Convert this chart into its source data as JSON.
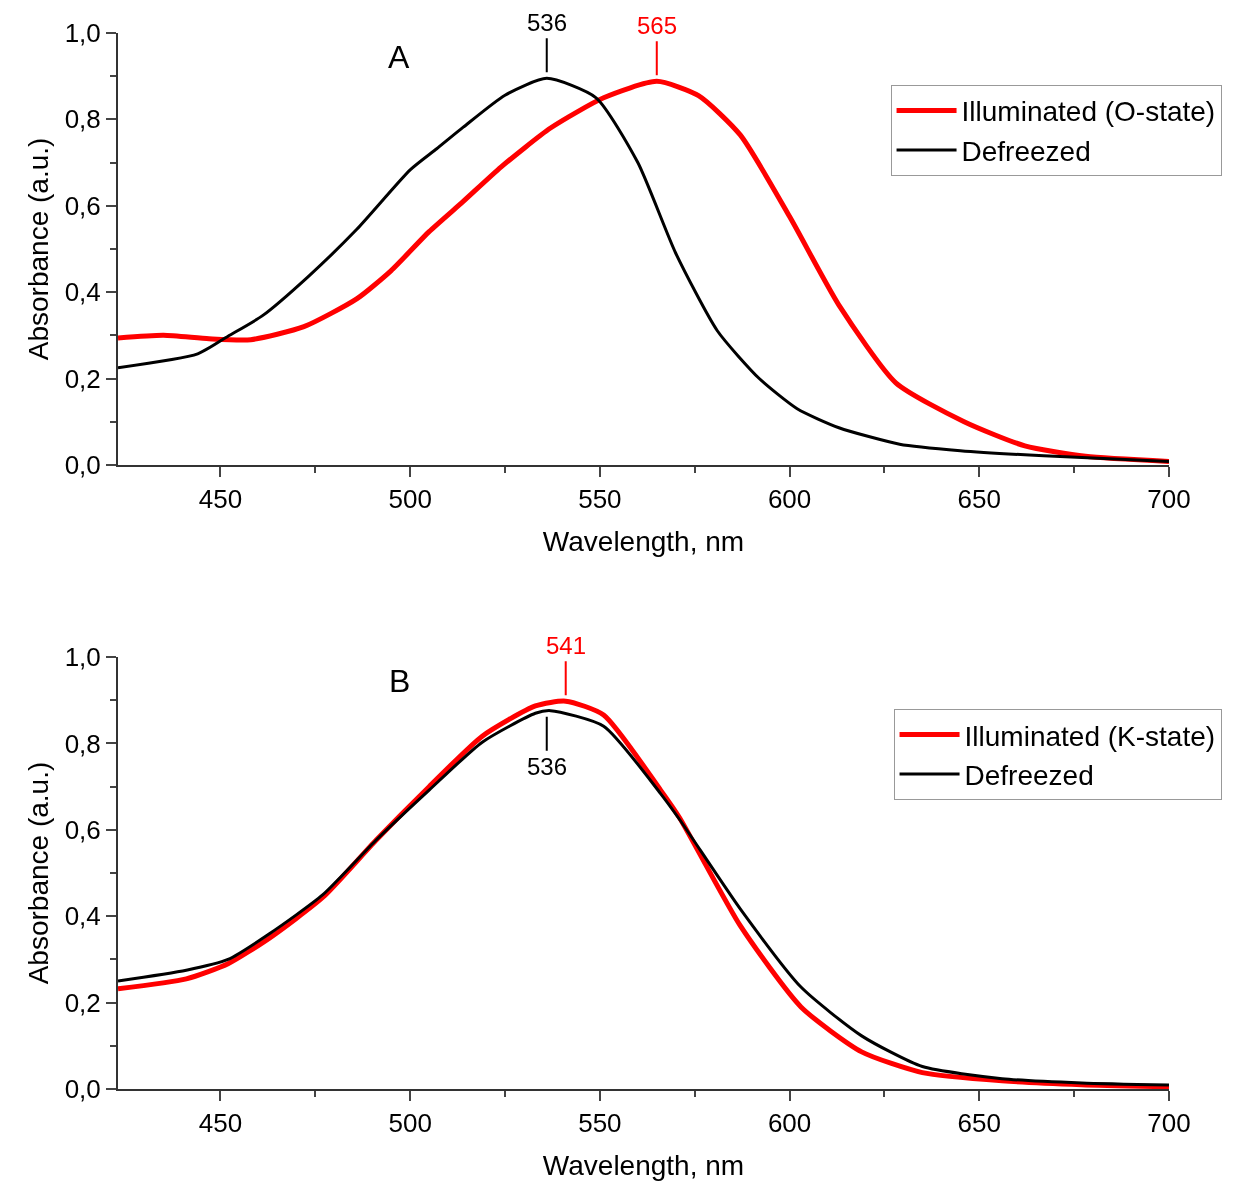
{
  "chart_data": [
    {
      "type": "line",
      "title": "A",
      "xlabel": "Wavelength, nm",
      "ylabel": "Absorbance (a.u.)",
      "xlim": [
        423,
        700
      ],
      "ylim": [
        0,
        1.0
      ],
      "xticks": [
        450,
        {
          "value": 475,
          "label": null
        },
        500,
        {
          "value": 525,
          "label": null
        },
        550,
        {
          "value": 575,
          "label": null
        },
        600,
        {
          "value": 625,
          "label": null
        },
        650,
        {
          "value": 675,
          "label": null
        },
        700
      ],
      "yticks": [
        {
          "value": 0,
          "label": "0,0"
        },
        {
          "value": 0.1,
          "label": null
        },
        {
          "value": 0.2,
          "label": "0,2"
        },
        {
          "value": 0.3,
          "label": null
        },
        {
          "value": 0.4,
          "label": "0,4"
        },
        {
          "value": 0.5,
          "label": null
        },
        {
          "value": 0.6,
          "label": "0,6"
        },
        {
          "value": 0.7,
          "label": null
        },
        {
          "value": 0.8,
          "label": "0,8"
        },
        {
          "value": 0.9,
          "label": null
        },
        {
          "value": 1.0,
          "label": "1,0"
        }
      ],
      "legend": "top right",
      "grid": false,
      "marker": "none",
      "line_style": "solid",
      "annotations": [
        {
          "text": "536",
          "x": 536,
          "y": 0.895
        },
        {
          "text": "565",
          "x": 565,
          "y": 0.888
        }
      ],
      "series": [
        {
          "name": "Illuminated (O-state)",
          "color": "#ff0000",
          "x": [
            423,
            435,
            447,
            458,
            472,
            486,
            495,
            505,
            514,
            524,
            537,
            551,
            565,
            576,
            587,
            600,
            613,
            628,
            646,
            662,
            678,
            700
          ],
          "values": [
            0.294,
            0.3,
            0.292,
            0.29,
            0.32,
            0.385,
            0.45,
            0.54,
            0.61,
            0.69,
            0.78,
            0.85,
            0.888,
            0.855,
            0.764,
            0.575,
            0.37,
            0.19,
            0.1,
            0.044,
            0.02,
            0.008
          ]
        },
        {
          "name": "Defreezed",
          "color": "#000000",
          "x": [
            423,
            444,
            452,
            461,
            473,
            486,
            500,
            507,
            514,
            525,
            536,
            549,
            560,
            570,
            581,
            592,
            602,
            613,
            629,
            645,
            667,
            700
          ],
          "values": [
            0.225,
            0.257,
            0.298,
            0.345,
            0.435,
            0.546,
            0.683,
            0.732,
            0.782,
            0.856,
            0.895,
            0.85,
            0.7,
            0.49,
            0.31,
            0.2,
            0.13,
            0.086,
            0.048,
            0.033,
            0.021,
            0.008
          ]
        }
      ]
    },
    {
      "type": "line",
      "title": "B",
      "xlabel": "Wavelength, nm",
      "ylabel": "Absorbance (a.u.)",
      "xlim": [
        423,
        700
      ],
      "ylim": [
        0,
        1.0
      ],
      "xticks": [
        450,
        {
          "value": 475,
          "label": null
        },
        500,
        {
          "value": 525,
          "label": null
        },
        550,
        {
          "value": 575,
          "label": null
        },
        600,
        {
          "value": 625,
          "label": null
        },
        650,
        {
          "value": 675,
          "label": null
        },
        700
      ],
      "yticks": [
        {
          "value": 0,
          "label": "0,0"
        },
        {
          "value": 0.1,
          "label": null
        },
        {
          "value": 0.2,
          "label": "0,2"
        },
        {
          "value": 0.3,
          "label": null
        },
        {
          "value": 0.4,
          "label": "0,4"
        },
        {
          "value": 0.5,
          "label": null
        },
        {
          "value": 0.6,
          "label": "0,6"
        },
        {
          "value": 0.7,
          "label": null
        },
        {
          "value": 0.8,
          "label": "0,8"
        },
        {
          "value": 0.9,
          "label": null
        },
        {
          "value": 1.0,
          "label": "1,0"
        }
      ],
      "legend": "top right",
      "grid": false,
      "marker": "none",
      "line_style": "solid",
      "annotations": [
        {
          "text": "541",
          "x": 541,
          "y": 0.898
        },
        {
          "text": "536",
          "x": 536,
          "y": 0.876
        }
      ],
      "series": [
        {
          "name": "Illuminated (K-state)",
          "color": "#ff0000",
          "x": [
            423,
            441,
            452,
            463,
            477,
            491,
            505,
            519,
            533,
            541,
            551,
            566,
            571,
            587,
            603,
            619,
            635,
            656,
            677,
            700
          ],
          "values": [
            0.232,
            0.255,
            0.29,
            0.35,
            0.444,
            0.576,
            0.7,
            0.817,
            0.887,
            0.898,
            0.866,
            0.692,
            0.628,
            0.378,
            0.19,
            0.086,
            0.038,
            0.019,
            0.01,
            0.005
          ]
        },
        {
          "name": "Defreezed",
          "color": "#000000",
          "x": [
            423,
            441,
            452,
            463,
            477,
            491,
            505,
            519,
            533,
            537,
            551,
            566,
            571,
            587,
            603,
            619,
            635,
            656,
            677,
            700
          ],
          "values": [
            0.25,
            0.275,
            0.3,
            0.36,
            0.45,
            0.576,
            0.692,
            0.803,
            0.87,
            0.876,
            0.84,
            0.684,
            0.624,
            0.417,
            0.236,
            0.123,
            0.052,
            0.024,
            0.014,
            0.009
          ]
        }
      ]
    }
  ]
}
